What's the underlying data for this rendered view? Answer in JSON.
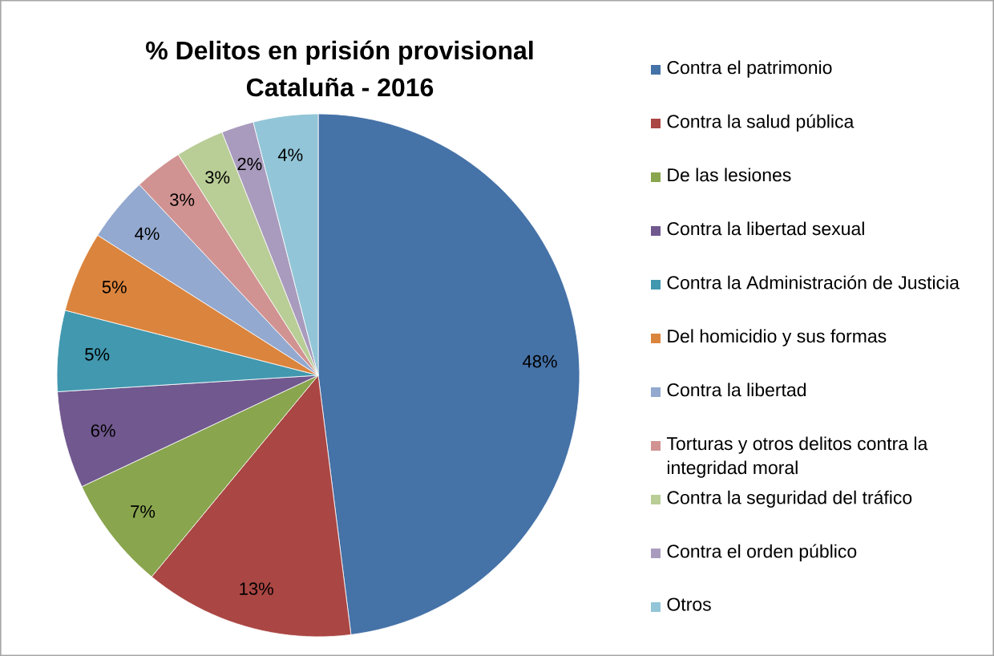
{
  "chart_data": {
    "type": "pie",
    "title": "% Delitos en prisión provisional",
    "subtitle": "Cataluña - 2016",
    "categories": [
      "Contra el patrimonio",
      "Contra la salud pública",
      "De las lesiones",
      "Contra la libertad sexual",
      "Contra la Administración de Justicia",
      "Del homicidio y sus formas",
      "Contra la libertad",
      "Torturas y otros delitos contra la integridad moral",
      "Contra la seguridad del tráfico",
      "Contra el orden público",
      "Otros"
    ],
    "values": [
      48,
      13,
      7,
      6,
      5,
      5,
      4,
      3,
      3,
      2,
      4
    ],
    "value_labels": [
      "48%",
      "13%",
      "7%",
      "6%",
      "5%",
      "5%",
      "4%",
      "3%",
      "3%",
      "2%",
      "4%"
    ],
    "colors": [
      "#4572a7",
      "#aa4643",
      "#89a54e",
      "#71588f",
      "#4198af",
      "#db843d",
      "#93a9cf",
      "#d19392",
      "#b9cd96",
      "#a99bbd",
      "#92c5d7"
    ],
    "legend": "right"
  }
}
